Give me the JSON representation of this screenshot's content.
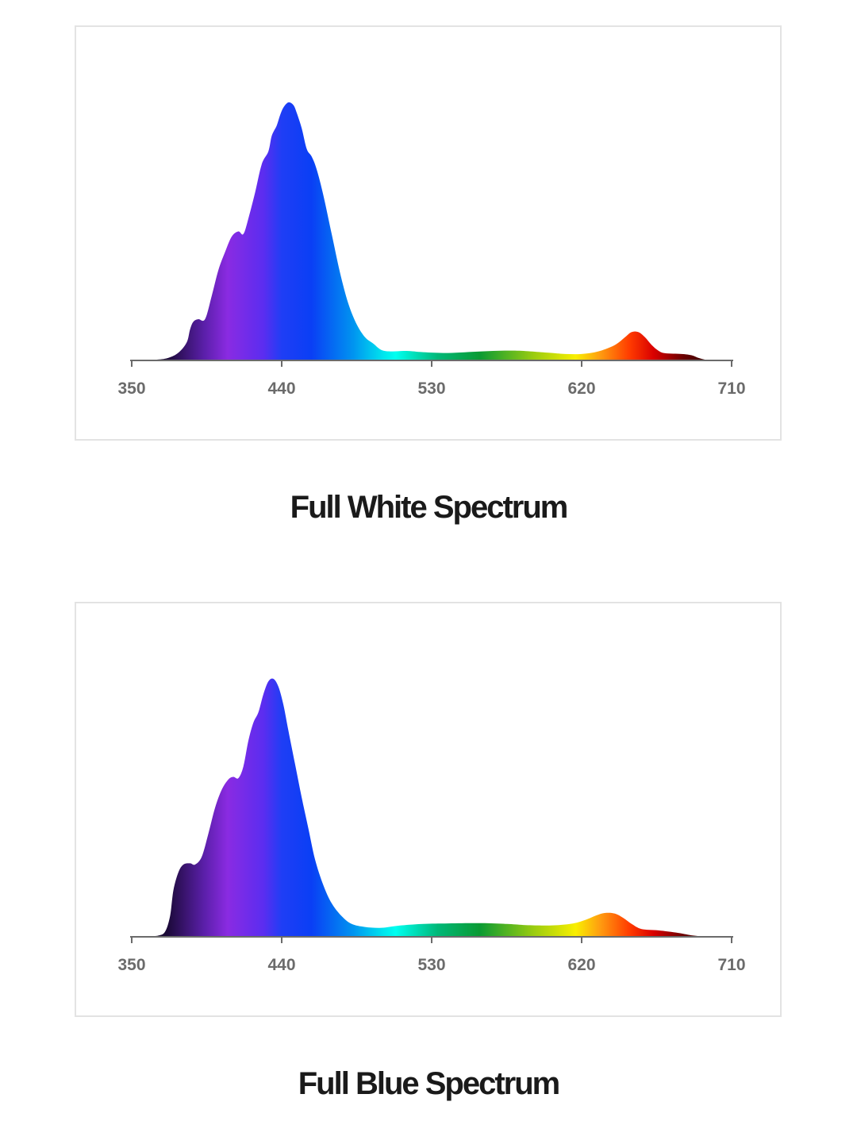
{
  "chart_data": [
    {
      "type": "area",
      "title": "Full White Spectrum",
      "xlabel": "",
      "ylabel": "",
      "xlim": [
        350,
        710
      ],
      "ylim": [
        0,
        100
      ],
      "x_ticks": [
        350,
        440,
        530,
        620,
        710
      ],
      "grid": false,
      "points": [
        [
          350,
          0
        ],
        [
          365,
          0.3
        ],
        [
          372,
          1
        ],
        [
          378,
          3
        ],
        [
          383,
          7
        ],
        [
          385,
          12
        ],
        [
          387,
          15
        ],
        [
          390,
          16
        ],
        [
          394,
          16
        ],
        [
          398,
          25
        ],
        [
          402,
          35
        ],
        [
          406,
          42
        ],
        [
          410,
          48
        ],
        [
          414,
          50
        ],
        [
          417,
          49
        ],
        [
          420,
          55
        ],
        [
          424,
          65
        ],
        [
          428,
          76
        ],
        [
          432,
          81
        ],
        [
          434,
          87
        ],
        [
          437,
          91
        ],
        [
          439,
          95
        ],
        [
          441,
          98
        ],
        [
          444,
          100
        ],
        [
          447,
          99
        ],
        [
          449,
          96
        ],
        [
          452,
          90
        ],
        [
          455,
          82
        ],
        [
          458,
          79
        ],
        [
          461,
          74
        ],
        [
          465,
          64
        ],
        [
          470,
          49
        ],
        [
          475,
          34
        ],
        [
          480,
          22
        ],
        [
          485,
          14
        ],
        [
          490,
          9
        ],
        [
          495,
          6.5
        ],
        [
          500,
          4
        ],
        [
          506,
          3.5
        ],
        [
          515,
          3.7
        ],
        [
          525,
          3.2
        ],
        [
          540,
          2.9
        ],
        [
          560,
          3.5
        ],
        [
          580,
          3.8
        ],
        [
          600,
          3
        ],
        [
          610,
          2.5
        ],
        [
          620,
          2.5
        ],
        [
          630,
          3.5
        ],
        [
          640,
          6
        ],
        [
          646,
          9
        ],
        [
          650,
          11
        ],
        [
          654,
          11
        ],
        [
          658,
          9
        ],
        [
          662,
          6
        ],
        [
          666,
          3.8
        ],
        [
          670,
          2.8
        ],
        [
          680,
          2.5
        ],
        [
          686,
          2
        ],
        [
          690,
          1
        ],
        [
          694,
          0.3
        ],
        [
          698,
          0
        ]
      ]
    },
    {
      "type": "area",
      "title": "Full Blue Spectrum",
      "xlabel": "",
      "ylabel": "",
      "xlim": [
        350,
        710
      ],
      "ylim": [
        0,
        100
      ],
      "x_ticks": [
        350,
        440,
        530,
        620,
        710
      ],
      "grid": false,
      "points": [
        [
          350,
          0
        ],
        [
          360,
          0.2
        ],
        [
          366,
          0.5
        ],
        [
          370,
          2
        ],
        [
          373,
          8
        ],
        [
          375,
          18
        ],
        [
          378,
          25
        ],
        [
          381,
          28
        ],
        [
          385,
          28.5
        ],
        [
          388,
          28
        ],
        [
          392,
          31
        ],
        [
          396,
          40
        ],
        [
          400,
          50
        ],
        [
          404,
          57
        ],
        [
          408,
          61
        ],
        [
          411,
          62
        ],
        [
          414,
          61.5
        ],
        [
          417,
          66
        ],
        [
          420,
          76
        ],
        [
          423,
          83
        ],
        [
          426,
          87
        ],
        [
          429,
          94
        ],
        [
          432,
          99
        ],
        [
          435,
          100
        ],
        [
          438,
          97
        ],
        [
          441,
          90
        ],
        [
          444,
          80
        ],
        [
          448,
          67
        ],
        [
          452,
          54
        ],
        [
          456,
          42
        ],
        [
          460,
          30
        ],
        [
          465,
          20
        ],
        [
          470,
          13
        ],
        [
          476,
          8
        ],
        [
          482,
          5
        ],
        [
          490,
          3.8
        ],
        [
          500,
          3.5
        ],
        [
          510,
          4.3
        ],
        [
          525,
          5
        ],
        [
          540,
          5.2
        ],
        [
          560,
          5.3
        ],
        [
          575,
          5
        ],
        [
          585,
          4.6
        ],
        [
          596,
          4.4
        ],
        [
          605,
          4.5
        ],
        [
          615,
          5.2
        ],
        [
          622,
          6.5
        ],
        [
          630,
          8.6
        ],
        [
          635,
          9.3
        ],
        [
          640,
          9
        ],
        [
          645,
          7.3
        ],
        [
          650,
          5
        ],
        [
          656,
          3
        ],
        [
          666,
          2.5
        ],
        [
          678,
          1.5
        ],
        [
          687,
          0.5
        ],
        [
          695,
          0
        ]
      ]
    }
  ]
}
